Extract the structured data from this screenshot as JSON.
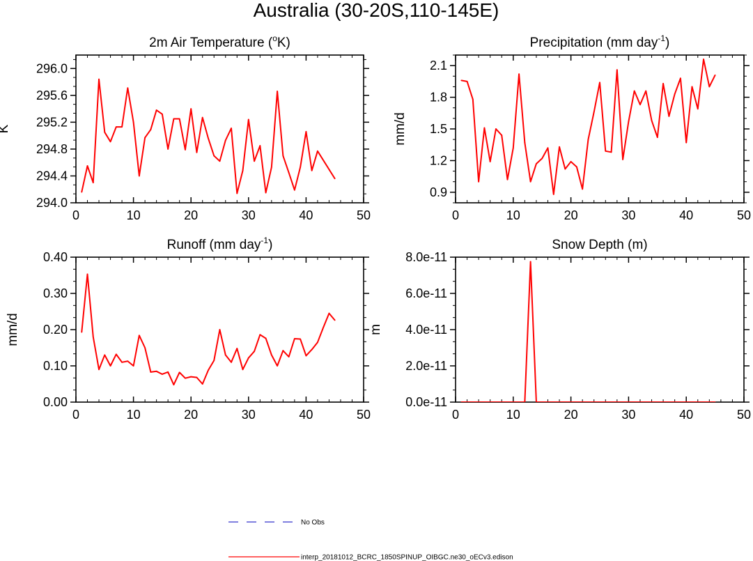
{
  "main_title": "Australia (30-20S,110-145E)",
  "chart_data": [
    {
      "type": "line",
      "title": "2m Air Temperature (",
      "title_sup": "o",
      "title_post": "K)",
      "ylabel": "K",
      "xlim": [
        0,
        50
      ],
      "ylim": [
        294.0,
        296.2
      ],
      "xticks": [
        0,
        10,
        20,
        30,
        40,
        50
      ],
      "xtick_labels": [
        "0",
        "10",
        "20",
        "30",
        "40",
        "50"
      ],
      "yticks": [
        294.0,
        294.4,
        294.8,
        295.2,
        295.6,
        296.0
      ],
      "ytick_labels": [
        "294.0",
        "294.4",
        "294.8",
        "295.2",
        "295.6",
        "296.0"
      ],
      "series": [
        {
          "color": "#ff0000",
          "x": [
            1,
            2,
            3,
            4,
            5,
            6,
            7,
            8,
            9,
            10,
            11,
            12,
            13,
            14,
            15,
            16,
            17,
            18,
            19,
            20,
            21,
            22,
            23,
            24,
            25,
            26,
            27,
            28,
            29,
            30,
            31,
            32,
            33,
            34,
            35,
            36,
            37,
            38,
            39,
            40,
            41,
            42,
            45
          ],
          "values": [
            294.16,
            294.55,
            294.3,
            295.84,
            295.05,
            294.91,
            295.13,
            295.13,
            295.71,
            295.2,
            294.4,
            294.97,
            295.09,
            295.38,
            295.32,
            294.8,
            295.25,
            295.25,
            294.79,
            295.4,
            294.75,
            295.27,
            294.96,
            294.7,
            294.62,
            294.93,
            295.11,
            294.14,
            294.48,
            295.24,
            294.62,
            294.85,
            294.15,
            294.53,
            295.66,
            294.7,
            294.45,
            294.19,
            294.53,
            295.06,
            294.48,
            294.77,
            294.36
          ]
        }
      ]
    },
    {
      "type": "line",
      "title": "Precipitation (mm day",
      "title_sup": "-1",
      "title_post": ")",
      "ylabel": "mm/d",
      "xlim": [
        0,
        50
      ],
      "ylim": [
        0.8,
        2.2
      ],
      "xticks": [
        0,
        10,
        20,
        30,
        40,
        50
      ],
      "xtick_labels": [
        "0",
        "10",
        "20",
        "30",
        "40",
        "50"
      ],
      "yticks": [
        0.9,
        1.2,
        1.5,
        1.8,
        2.1
      ],
      "ytick_labels": [
        "0.9",
        "1.2",
        "1.5",
        "1.8",
        "2.1"
      ],
      "series": [
        {
          "color": "#ff0000",
          "x": [
            1,
            2,
            3,
            4,
            5,
            6,
            7,
            8,
            9,
            10,
            11,
            12,
            13,
            14,
            15,
            16,
            17,
            18,
            19,
            20,
            21,
            22,
            23,
            24,
            25,
            26,
            27,
            28,
            29,
            30,
            31,
            32,
            33,
            34,
            35,
            36,
            37,
            38,
            39,
            40,
            41,
            42,
            43,
            44,
            45
          ],
          "values": [
            1.96,
            1.95,
            1.78,
            1.0,
            1.51,
            1.19,
            1.5,
            1.44,
            1.02,
            1.32,
            2.02,
            1.37,
            1.0,
            1.17,
            1.22,
            1.32,
            0.88,
            1.33,
            1.12,
            1.19,
            1.14,
            0.93,
            1.4,
            1.66,
            1.94,
            1.29,
            1.28,
            2.06,
            1.21,
            1.57,
            1.86,
            1.73,
            1.86,
            1.58,
            1.42,
            1.93,
            1.62,
            1.83,
            1.98,
            1.37,
            1.9,
            1.69,
            2.16,
            1.9,
            2.01
          ]
        }
      ]
    },
    {
      "type": "line",
      "title": "Runoff (mm day",
      "title_sup": "-1",
      "title_post": ")",
      "ylabel": "mm/d",
      "xlim": [
        0,
        50
      ],
      "ylim": [
        0.0,
        0.4
      ],
      "xticks": [
        0,
        10,
        20,
        30,
        40,
        50
      ],
      "xtick_labels": [
        "0",
        "10",
        "20",
        "30",
        "40",
        "50"
      ],
      "yticks": [
        0.0,
        0.1,
        0.2,
        0.3,
        0.4
      ],
      "ytick_labels": [
        "0.00",
        "0.10",
        "0.20",
        "0.30",
        "0.40"
      ],
      "series": [
        {
          "color": "#ff0000",
          "x": [
            1,
            2,
            3,
            4,
            5,
            6,
            7,
            8,
            9,
            10,
            11,
            12,
            13,
            14,
            15,
            16,
            17,
            18,
            19,
            20,
            21,
            22,
            23,
            24,
            25,
            26,
            27,
            28,
            29,
            30,
            31,
            32,
            33,
            34,
            35,
            36,
            37,
            38,
            39,
            40,
            41,
            42,
            43,
            44,
            45
          ],
          "values": [
            0.193,
            0.353,
            0.18,
            0.09,
            0.13,
            0.1,
            0.132,
            0.11,
            0.113,
            0.1,
            0.184,
            0.15,
            0.083,
            0.085,
            0.077,
            0.083,
            0.048,
            0.082,
            0.066,
            0.07,
            0.068,
            0.05,
            0.088,
            0.115,
            0.2,
            0.13,
            0.11,
            0.148,
            0.09,
            0.122,
            0.14,
            0.186,
            0.176,
            0.13,
            0.1,
            0.142,
            0.125,
            0.175,
            0.174,
            0.128,
            0.145,
            0.165,
            0.206,
            0.245,
            0.226
          ]
        }
      ]
    },
    {
      "type": "line",
      "title": "Snow Depth (m)",
      "title_sup": "",
      "title_post": "",
      "ylabel": "m",
      "xlim": [
        0,
        50
      ],
      "ylim": [
        0.0,
        8e-11
      ],
      "xticks": [
        0,
        10,
        20,
        30,
        40,
        50
      ],
      "xtick_labels": [
        "0",
        "10",
        "20",
        "30",
        "40",
        "50"
      ],
      "yticks": [
        0.0,
        2e-11,
        4e-11,
        6e-11,
        8e-11
      ],
      "ytick_labels": [
        "0.0e-11",
        "2.0e-11",
        "4.0e-11",
        "6.0e-11",
        "8.0e-11"
      ],
      "series": [
        {
          "color": "#ff0000",
          "x": [
            1,
            2,
            3,
            4,
            5,
            6,
            7,
            8,
            9,
            10,
            11,
            12,
            13,
            14,
            15,
            16,
            17,
            18,
            19,
            20,
            21,
            22,
            23,
            24,
            25,
            26,
            27,
            28,
            29,
            30,
            31,
            32,
            33,
            34,
            35,
            36,
            37,
            38,
            39,
            40,
            41,
            42,
            43,
            44,
            45
          ],
          "values": [
            0,
            0,
            0,
            0,
            0,
            0,
            0,
            0,
            0,
            0,
            0,
            0,
            7.75e-11,
            0,
            0,
            0,
            0,
            0,
            0,
            0,
            0,
            0,
            0,
            0,
            0,
            0,
            0,
            0,
            0,
            0,
            0,
            0,
            0,
            0,
            0,
            0,
            0,
            0,
            0,
            0,
            0,
            0,
            0,
            0,
            0
          ]
        }
      ]
    }
  ],
  "legend": [
    {
      "label": "No Obs",
      "color": "#3333cc",
      "dash": "14,12"
    },
    {
      "label": "interp_20181012_BCRC_1850SPINUP_OIBGC.ne30_oECv3.edison",
      "color": "#ff0000",
      "dash": ""
    }
  ]
}
